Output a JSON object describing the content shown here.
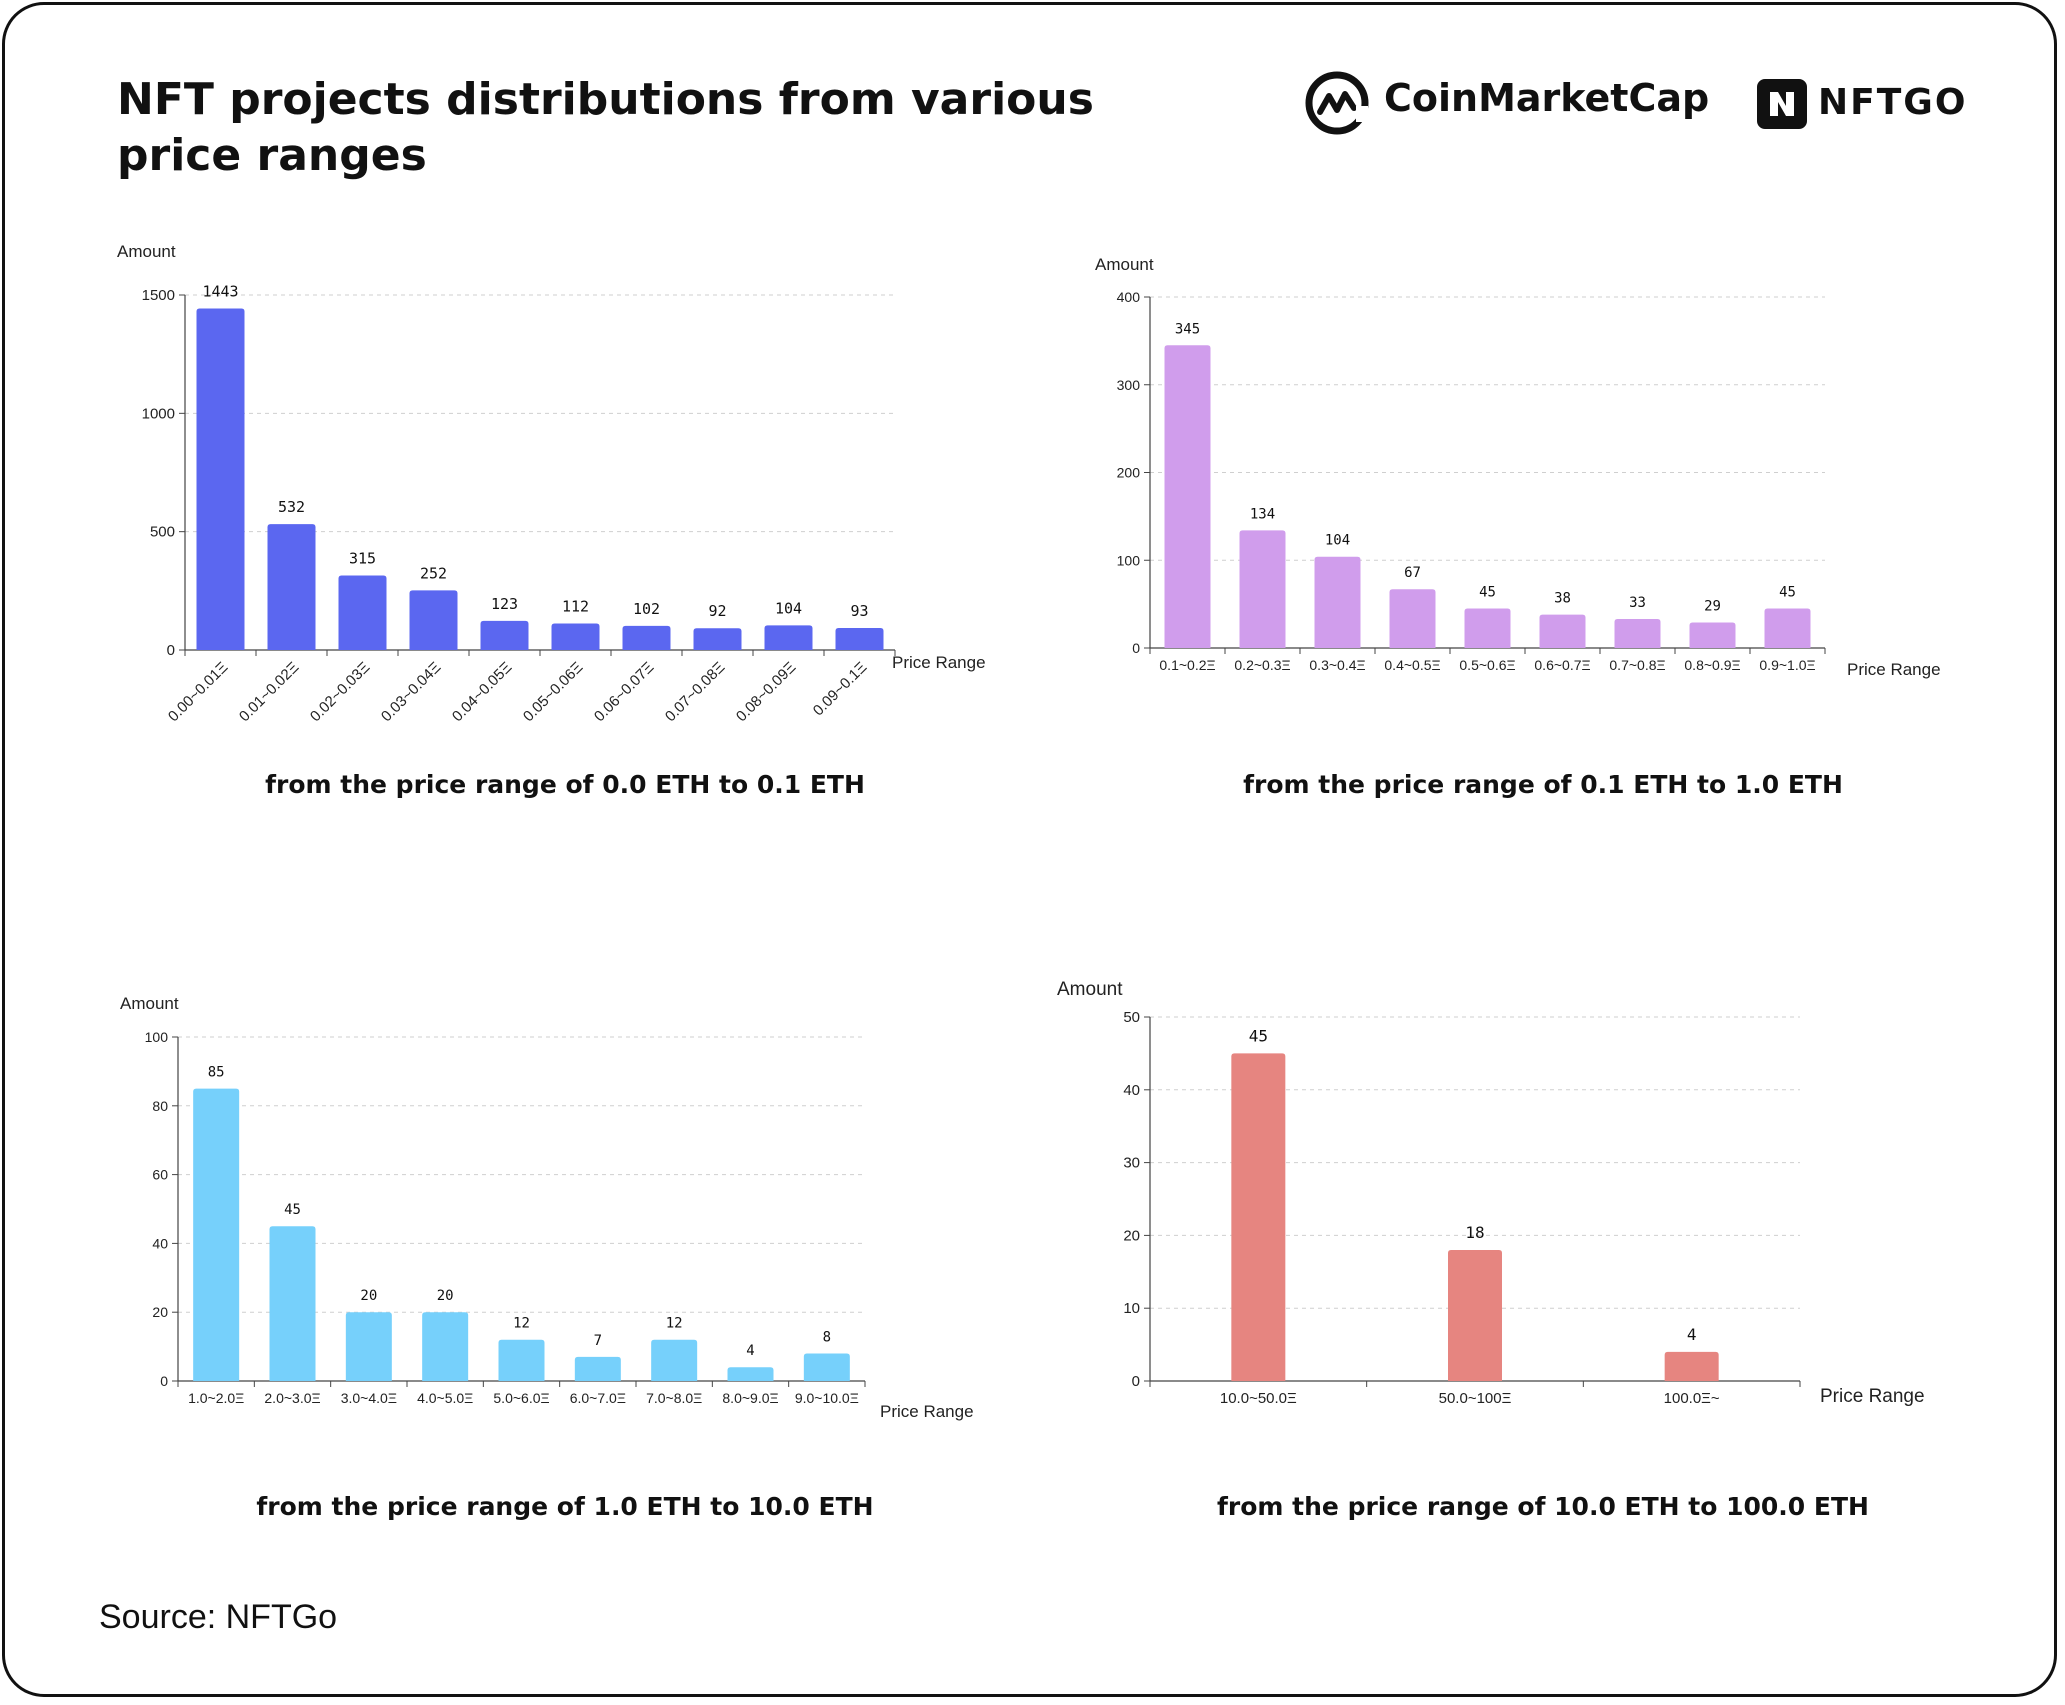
{
  "header": {
    "title": "NFT projects distributions from various price ranges",
    "cmc_brand": "CoinMarketCap",
    "nftgo_brand": "NFTGO"
  },
  "footer": {
    "source": "Source: NFTGo"
  },
  "chart_data": [
    {
      "type": "bar",
      "caption": "from the price range of 0.0 ETH to 0.1 ETH",
      "ylabel": "Amount",
      "xlabel": "Price Range",
      "categories": [
        "0.00~0.01Ξ",
        "0.01~0.02Ξ",
        "0.02~0.03Ξ",
        "0.03~0.04Ξ",
        "0.04~0.05Ξ",
        "0.05~0.06Ξ",
        "0.06~0.07Ξ",
        "0.07~0.08Ξ",
        "0.08~0.09Ξ",
        "0.09~0.1Ξ"
      ],
      "values": [
        1443,
        532,
        315,
        252,
        123,
        112,
        102,
        92,
        104,
        93
      ],
      "ylim": [
        0,
        1500
      ],
      "yticks": [
        0,
        500,
        1000,
        1500
      ],
      "color": "#5b67f0",
      "grid": true
    },
    {
      "type": "bar",
      "caption": "from the price range of 0.1 ETH to 1.0 ETH",
      "ylabel": "Amount",
      "xlabel": "Price Range",
      "categories": [
        "0.1~0.2Ξ",
        "0.2~0.3Ξ",
        "0.3~0.4Ξ",
        "0.4~0.5Ξ",
        "0.5~0.6Ξ",
        "0.6~0.7Ξ",
        "0.7~0.8Ξ",
        "0.8~0.9Ξ",
        "0.9~1.0Ξ"
      ],
      "values": [
        345,
        134,
        104,
        67,
        45,
        38,
        33,
        29,
        45
      ],
      "ylim": [
        0,
        400
      ],
      "yticks": [
        0,
        100,
        200,
        300,
        400
      ],
      "color": "#d09dec",
      "grid": true
    },
    {
      "type": "bar",
      "caption": "from the price range of 1.0 ETH to 10.0 ETH",
      "ylabel": "Amount",
      "xlabel": "Price Range",
      "categories": [
        "1.0~2.0Ξ",
        "2.0~3.0Ξ",
        "3.0~4.0Ξ",
        "4.0~5.0Ξ",
        "5.0~6.0Ξ",
        "6.0~7.0Ξ",
        "7.0~8.0Ξ",
        "8.0~9.0Ξ",
        "9.0~10.0Ξ"
      ],
      "values": [
        85,
        45,
        20,
        20,
        12,
        7,
        12,
        4,
        8
      ],
      "ylim": [
        0,
        100
      ],
      "yticks": [
        0,
        20,
        40,
        60,
        80,
        100
      ],
      "color": "#76d0fb",
      "grid": true
    },
    {
      "type": "bar",
      "caption": "from the price range of 10.0 ETH to 100.0 ETH",
      "ylabel": "Amount",
      "xlabel": "Price Range",
      "categories": [
        "10.0~50.0Ξ",
        "50.0~100Ξ",
        "100.0Ξ~"
      ],
      "values": [
        45,
        18,
        4
      ],
      "ylim": [
        0,
        50
      ],
      "yticks": [
        0,
        10,
        20,
        30,
        40,
        50
      ],
      "color": "#e68580",
      "grid": true
    }
  ]
}
